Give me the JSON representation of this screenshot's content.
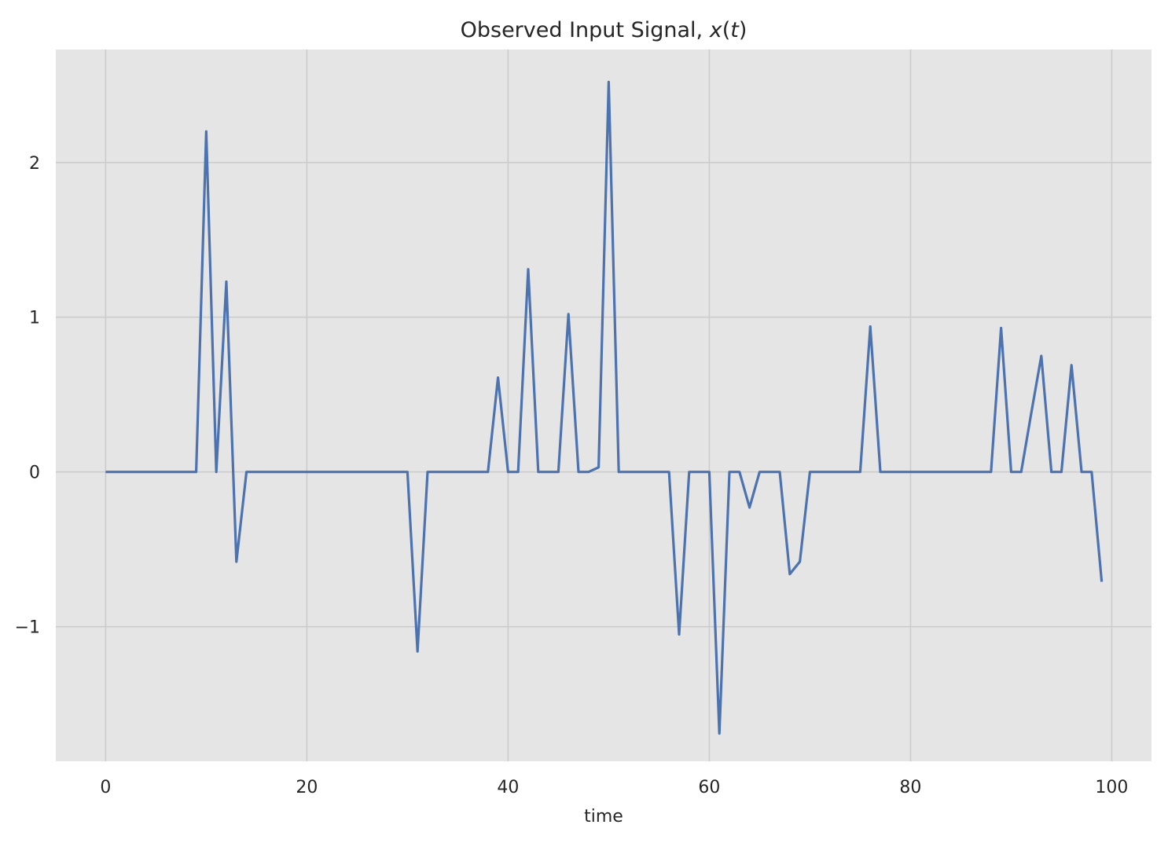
{
  "chart_data": {
    "type": "line",
    "title": "Observed Input Signal, x(t)",
    "title_parts": [
      "Observed Input Signal, ",
      "x",
      "(",
      "t",
      ")"
    ],
    "xlabel": "time",
    "ylabel": "",
    "xlim": [
      -4.95,
      103.95
    ],
    "ylim": [
      -1.87,
      2.73
    ],
    "xticks": [
      0,
      20,
      40,
      60,
      80,
      100
    ],
    "yticks": [
      -1,
      0,
      1,
      2
    ],
    "xtick_labels": [
      "0",
      "20",
      "40",
      "60",
      "80",
      "100"
    ],
    "ytick_labels": [
      "−1",
      "0",
      "1",
      "2"
    ],
    "grid": true,
    "background": "#e5e5e5",
    "line_color": "#4c72b0",
    "series": [
      {
        "values": [
          0,
          0,
          0,
          0,
          0,
          0,
          0,
          0,
          0,
          0,
          2.2,
          0,
          1.23,
          -0.58,
          0,
          0,
          0,
          0,
          0,
          0,
          0,
          0,
          0,
          0,
          0,
          0,
          0,
          0,
          0,
          0,
          0,
          -1.16,
          0,
          0,
          0,
          0,
          0,
          0,
          0,
          0.61,
          0,
          0,
          1.31,
          0,
          0,
          0,
          1.02,
          0,
          0,
          0.03,
          2.52,
          0,
          0,
          0,
          0,
          0,
          0,
          -1.05,
          0,
          0,
          0,
          -1.69,
          0,
          0,
          -0.23,
          0,
          0,
          0,
          -0.66,
          -0.58,
          0,
          0,
          0,
          0,
          0,
          0,
          0.94,
          0,
          0,
          0,
          0,
          0,
          0,
          0,
          0,
          0,
          0,
          0,
          0,
          0.93,
          0,
          0,
          0.38,
          0.75,
          0,
          0,
          0.69,
          0,
          0,
          -0.71
        ]
      }
    ]
  }
}
